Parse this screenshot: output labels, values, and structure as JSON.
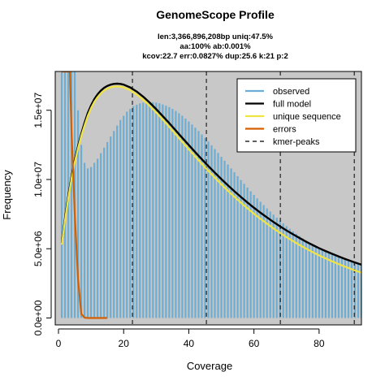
{
  "chart_data": {
    "type": "bar",
    "title": "GenomeScope Profile",
    "subtitle_lines": [
      "len:3,366,896,208bp uniq:47.5%",
      "aa:100% ab:0.001%",
      "kcov:22.7 err:0.0827% dup:25.6 k:21 p:2"
    ],
    "xlabel": "Coverage",
    "ylabel": "Frequency",
    "xlim": [
      -1,
      93
    ],
    "ylim": [
      -500000,
      17800000
    ],
    "x_ticks": [
      0,
      20,
      40,
      60,
      80
    ],
    "y_ticks": [
      0,
      5000000,
      10000000,
      15000000
    ],
    "y_tick_labels": [
      "0.0e+00",
      "5.0e+06",
      "1.0e+07",
      "1.5e+07"
    ],
    "background_color": "#c8c8c8",
    "grid": false,
    "legend_position": "top-right",
    "legend": [
      {
        "label": "observed",
        "color": "#6aaed6",
        "style": "solid"
      },
      {
        "label": "full model",
        "color": "#000000",
        "style": "solid"
      },
      {
        "label": "unique sequence",
        "color": "#f0e442",
        "style": "solid"
      },
      {
        "label": "errors",
        "color": "#d55e00",
        "style": "solid"
      },
      {
        "label": "kmer-peaks",
        "color": "#000000",
        "style": "dashed"
      }
    ],
    "kmer_peaks": [
      22.7,
      45.4,
      68.1,
      90.8
    ],
    "series": [
      {
        "name": "observed",
        "kind": "bar",
        "color": "#6aaed6",
        "x": [
          1,
          2,
          3,
          4,
          5,
          6,
          7,
          8,
          9,
          10,
          11,
          12,
          13,
          14,
          15,
          16,
          17,
          18,
          19,
          20,
          21,
          22,
          23,
          24,
          25,
          26,
          27,
          28,
          29,
          30,
          31,
          32,
          33,
          34,
          35,
          36,
          37,
          38,
          39,
          40,
          41,
          42,
          43,
          44,
          45,
          46,
          47,
          48,
          49,
          50,
          51,
          52,
          53,
          54,
          55,
          56,
          57,
          58,
          59,
          60,
          61,
          62,
          63,
          64,
          65,
          66,
          67,
          68,
          69,
          70,
          71,
          72,
          73,
          74,
          75,
          76,
          77,
          78,
          79,
          80,
          81,
          82,
          83,
          84,
          85,
          86,
          87,
          88,
          89,
          90,
          91,
          92,
          93
        ],
        "y": [
          17800000,
          17800000,
          17800000,
          17800000,
          17800000,
          15000000,
          12500000,
          11200000,
          10800000,
          10900000,
          11200000,
          11500000,
          11900000,
          12300000,
          12700000,
          13100000,
          13500000,
          13900000,
          14300000,
          14600000,
          14900000,
          15100000,
          15300000,
          15400000,
          15500000,
          15550000,
          15600000,
          15600000,
          15580000,
          15550000,
          15500000,
          15420000,
          15330000,
          15230000,
          15100000,
          14950000,
          14780000,
          14600000,
          14400000,
          14190000,
          13970000,
          13740000,
          13500000,
          13250000,
          13000000,
          12740000,
          12470000,
          12200000,
          11920000,
          11640000,
          11360000,
          11080000,
          10800000,
          10520000,
          10240000,
          9960000,
          9690000,
          9420000,
          9150000,
          8890000,
          8640000,
          8390000,
          8150000,
          7910000,
          7680000,
          7460000,
          7240000,
          7030000,
          6830000,
          6630000,
          6440000,
          6260000,
          6080000,
          5910000,
          5750000,
          5590000,
          5440000,
          5300000,
          5160000,
          5030000,
          4910000,
          4790000,
          4680000,
          4570000,
          4470000,
          4370000,
          4280000,
          4190000,
          4110000,
          4030000,
          3950000,
          3880000,
          3810000
        ]
      },
      {
        "name": "full model",
        "kind": "line",
        "color": "#000000",
        "x": [
          1,
          2,
          3,
          4,
          5,
          6,
          7,
          8,
          9,
          10,
          11,
          12,
          13,
          14,
          15,
          16,
          17,
          18,
          19,
          20,
          22,
          24,
          26,
          28,
          30,
          32,
          34,
          36,
          38,
          40,
          42,
          44,
          46,
          48,
          50,
          52,
          54,
          56,
          58,
          60,
          62,
          64,
          66,
          68,
          70,
          72,
          74,
          76,
          78,
          80,
          82,
          84,
          86,
          88,
          90,
          92,
          93
        ],
        "y": [
          5400000,
          7200000,
          8800000,
          10200000,
          11400000,
          12400000,
          13300000,
          14100000,
          14800000,
          15350000,
          15800000,
          16150000,
          16420000,
          16620000,
          16760000,
          16850000,
          16900000,
          16920000,
          16900000,
          16850000,
          16650000,
          16350000,
          15980000,
          15550000,
          15080000,
          14580000,
          14070000,
          13540000,
          13010000,
          12490000,
          11970000,
          11460000,
          10970000,
          10490000,
          10030000,
          9580000,
          9150000,
          8740000,
          8340000,
          7960000,
          7600000,
          7260000,
          6930000,
          6620000,
          6320000,
          6040000,
          5770000,
          5510000,
          5270000,
          5040000,
          4830000,
          4630000,
          4440000,
          4260000,
          4090000,
          3930000,
          3850000
        ]
      },
      {
        "name": "unique sequence",
        "kind": "line",
        "color": "#f0e442",
        "x": [
          1,
          2,
          3,
          4,
          5,
          6,
          7,
          8,
          9,
          10,
          11,
          12,
          13,
          14,
          15,
          16,
          17,
          18,
          19,
          20,
          22,
          24,
          26,
          28,
          30,
          32,
          34,
          36,
          38,
          40,
          42,
          44,
          46,
          48,
          50,
          52,
          54,
          56,
          58,
          60,
          62,
          64,
          66,
          68,
          70,
          72,
          74,
          76,
          78,
          80,
          82,
          84,
          86,
          88,
          90,
          92,
          93
        ],
        "y": [
          5300000,
          7050000,
          8650000,
          10050000,
          11250000,
          12250000,
          13150000,
          13900000,
          14600000,
          15150000,
          15600000,
          15950000,
          16220000,
          16420000,
          16560000,
          16650000,
          16700000,
          16720000,
          16700000,
          16650000,
          16450000,
          16140000,
          15760000,
          15320000,
          14840000,
          14330000,
          13800000,
          13260000,
          12720000,
          12180000,
          11650000,
          11130000,
          10620000,
          10130000,
          9650000,
          9190000,
          8750000,
          8330000,
          7920000,
          7530000,
          7160000,
          6810000,
          6470000,
          6150000,
          5840000,
          5550000,
          5270000,
          5010000,
          4760000,
          4520000,
          4300000,
          4090000,
          3890000,
          3700000,
          3520000,
          3350000,
          3270000
        ]
      },
      {
        "name": "errors",
        "kind": "line",
        "color": "#d55e00",
        "x": [
          1,
          2,
          3,
          3.5,
          4,
          5,
          6,
          7,
          8,
          9,
          10,
          11,
          12,
          13,
          14,
          15
        ],
        "y": [
          17800000,
          17800000,
          17800000,
          17800000,
          13500000,
          7500000,
          2800000,
          300000,
          20000,
          0,
          0,
          0,
          0,
          0,
          0,
          0
        ]
      }
    ]
  }
}
